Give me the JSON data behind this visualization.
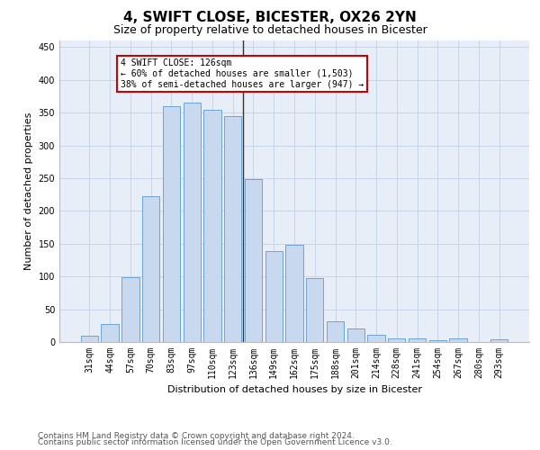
{
  "title": "4, SWIFT CLOSE, BICESTER, OX26 2YN",
  "subtitle": "Size of property relative to detached houses in Bicester",
  "xlabel": "Distribution of detached houses by size in Bicester",
  "ylabel": "Number of detached properties",
  "categories": [
    "31sqm",
    "44sqm",
    "57sqm",
    "70sqm",
    "83sqm",
    "97sqm",
    "110sqm",
    "123sqm",
    "136sqm",
    "149sqm",
    "162sqm",
    "175sqm",
    "188sqm",
    "201sqm",
    "214sqm",
    "228sqm",
    "241sqm",
    "254sqm",
    "267sqm",
    "280sqm",
    "293sqm"
  ],
  "bar_heights": [
    10,
    27,
    99,
    222,
    360,
    365,
    354,
    345,
    249,
    139,
    148,
    97,
    31,
    20,
    11,
    5,
    5,
    3,
    5,
    0,
    4
  ],
  "bar_color": "#c8d9ef",
  "bar_edge_color": "#5b9bd5",
  "annotation_text": "4 SWIFT CLOSE: 126sqm\n← 60% of detached houses are smaller (1,503)\n38% of semi-detached houses are larger (947) →",
  "annotation_box_color": "#ffffff",
  "annotation_edge_color": "#cc0000",
  "vline_color": "#333333",
  "ylim": [
    0,
    460
  ],
  "yticks": [
    0,
    50,
    100,
    150,
    200,
    250,
    300,
    350,
    400,
    450
  ],
  "footer_line1": "Contains HM Land Registry data © Crown copyright and database right 2024.",
  "footer_line2": "Contains public sector information licensed under the Open Government Licence v3.0.",
  "background_color": "#ffffff",
  "plot_bg_color": "#e8eef8",
  "grid_color": "#c8d4e8",
  "title_fontsize": 11,
  "subtitle_fontsize": 9,
  "axis_label_fontsize": 8,
  "tick_fontsize": 7,
  "annotation_fontsize": 7,
  "footer_fontsize": 6.5
}
